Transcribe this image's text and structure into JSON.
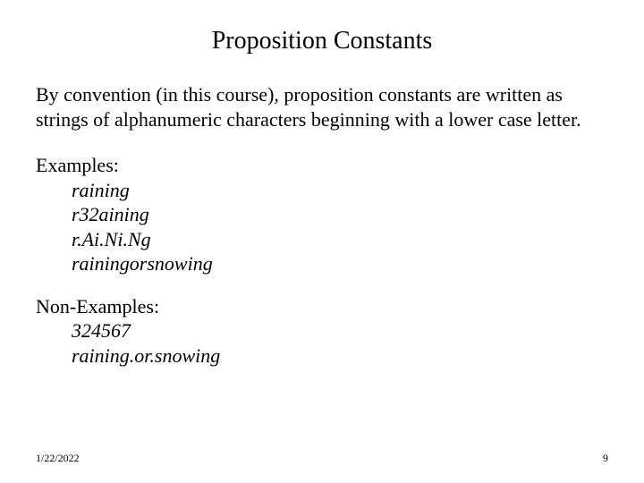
{
  "title": "Proposition Constants",
  "intro": "By convention (in this course), proposition constants are written as strings of alphanumeric characters beginning with a lower case letter.",
  "examples_label": "Examples:",
  "examples": {
    "e1": "raining",
    "e2": "r32aining",
    "e3": "r.Ai.Ni.Ng",
    "e4": "rainingorsnowing"
  },
  "nonexamples_label": "Non-Examples:",
  "nonexamples": {
    "n1": "324567",
    "n2": "raining.or.snowing"
  },
  "footer": {
    "date": "1/22/2022",
    "page": "9"
  },
  "colors": {
    "background": "#ffffff",
    "text": "#000000"
  },
  "fonts": {
    "title_size": 28,
    "body_size": 22,
    "footer_size": 12,
    "family": "Times New Roman"
  }
}
